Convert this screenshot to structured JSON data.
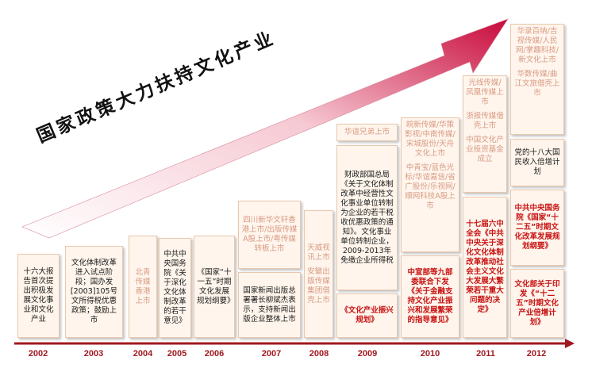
{
  "title": "国家政策大力扶持文化产业",
  "years": [
    "2002",
    "2003",
    "2004",
    "2005",
    "2006",
    "2007",
    "2008",
    "2009",
    "2010",
    "2011",
    "2012"
  ],
  "boxes": {
    "y2002": "十六大报告首次提出积极发展文化事业和文化产业",
    "y2003": "文化体制改革进入试点阶段；国办发[2003]105号文所得税优惠政策；鼓励上市",
    "y2004": "北青传媒香港上市",
    "y2005": "中共中央国务院《关于深化文化体制改革的若干意见》",
    "y2006": "《国家“十一五”时期文化发展规划纲要》",
    "y2007_top": "四川新华文轩香港上市/出版传媒A股上市/粤传媒转板上市",
    "y2007_bottom": "国家新闻出版总署署长柳斌杰表示，支持新闻出版企业整体上市",
    "y2008": [
      "天威视讯上市",
      "安徽出版传媒集团借壳上市"
    ],
    "y2009_top": "华谊兄弟上市",
    "y2009_mid": "财政部国总局《关于文化体制改革中经营性文化事业单位转制为企业的若干税收优惠政策的通知》。文化事业单位转制企业，2009-2013年免缴企业所得税",
    "y2009_bottom": "《文化产业振兴规划》",
    "y2010_top": [
      "皖新传媒/华策影视/中南传媒/宋城股份/天舟文化上市",
      "中青宝/蓝色光标/华谊嘉信/省广股份/乐视网/顺网科技A股上市"
    ],
    "y2010_bottom": "中宣部等九部委联合下发《关于金融支持文化产业振兴和发展繁荣的指导意见》",
    "y2011_top": [
      "光线传媒/凤凰传媒上市",
      "浙报传媒借壳上市",
      "中国文化产业投资基金成立"
    ],
    "y2011_bottom": "十七届六中全会《中共中央关于深化文化体制改革推动社会主义文化大发展大繁荣若干重大问题的决定》",
    "y2012_top": [
      "华录百纳/吉视传媒/人民网/掌趣科技/新文化上市",
      "华数传媒/曲江文旅借壳上市"
    ],
    "y2012_m1": "党的十八大国民收入倍增计划",
    "y2012_m2": "中共中央国务院《国家“十二五”时期文化改革发展规划纲要》",
    "y2012_m3": "文化部关于印发《“十二五”时期文化产业倍增计划》"
  },
  "colors": {
    "timeline": "#a01820",
    "banner_start": "#ffffff",
    "banner_end": "#c80a3c",
    "box_bg": "#fff5ec",
    "red_text": "#c81414",
    "muted_text": "#d89a84"
  }
}
